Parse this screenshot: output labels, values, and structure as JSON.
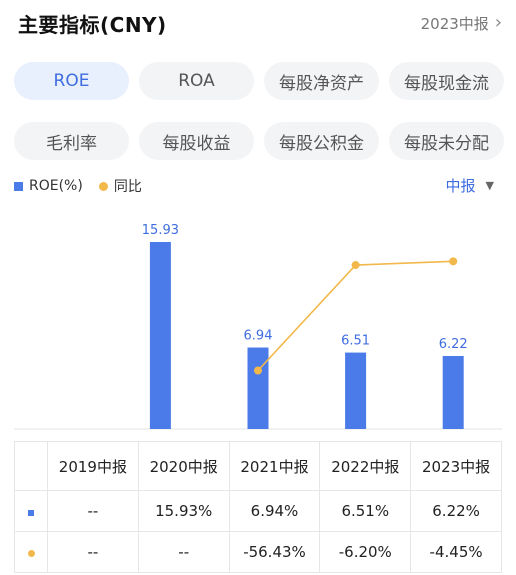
{
  "header": {
    "title": "主要指标(CNY)",
    "period": "2023中报"
  },
  "tabs": [
    [
      {
        "label": "ROE",
        "active": true
      },
      {
        "label": "ROA"
      },
      {
        "label": "每股净资产"
      },
      {
        "label": "每股现金流"
      }
    ],
    [
      {
        "label": "毛利率"
      },
      {
        "label": "每股收益"
      },
      {
        "label": "每股公积金"
      },
      {
        "label": "每股未分配"
      }
    ]
  ],
  "legend": {
    "series1": "ROE(%)",
    "series2": "同比"
  },
  "period_select": "中报",
  "colors": {
    "bar": "#4a7be8",
    "line": "#f2b84b",
    "negative": "#3ba35c",
    "accent": "#3f6de0"
  },
  "chart_data": {
    "type": "bar",
    "categories": [
      "2019中报",
      "2020中报",
      "2021中报",
      "2022中报",
      "2023中报"
    ],
    "series": [
      {
        "name": "ROE(%)",
        "type": "bar",
        "values": [
          null,
          15.93,
          6.94,
          6.51,
          6.22
        ],
        "labels": [
          "",
          "15.93",
          "6.94",
          "6.51",
          "6.22"
        ]
      },
      {
        "name": "同比",
        "type": "line",
        "values": [
          null,
          null,
          -56.43,
          -6.2,
          -4.45
        ]
      }
    ]
  },
  "table": {
    "headers": [
      "2019中报",
      "2020中报",
      "2021中报",
      "2022中报",
      "2023中报"
    ],
    "rows": [
      {
        "marker": "bar",
        "cells": [
          "--",
          "15.93%",
          "6.94%",
          "6.51%",
          "6.22%"
        ]
      },
      {
        "marker": "line",
        "cells": [
          "--",
          "--",
          "-56.43%",
          "-6.20%",
          "-4.45%"
        ]
      }
    ]
  }
}
